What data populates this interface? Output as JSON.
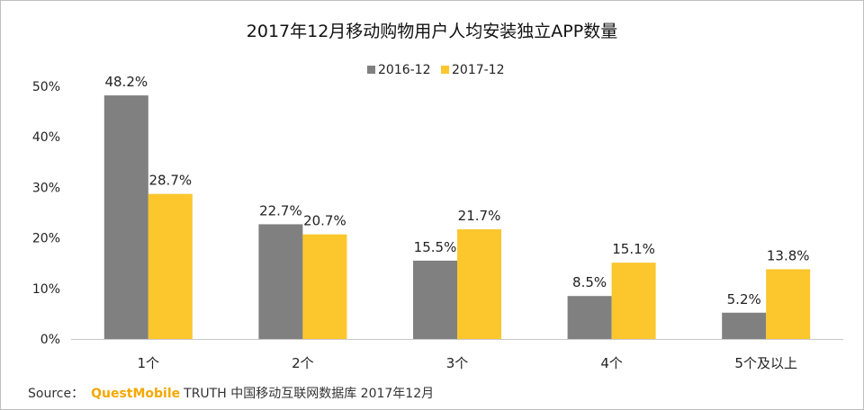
{
  "chart_data": {
    "type": "bar",
    "title": "2017年12月移动购物用户人均安装独立APP数量",
    "categories": [
      "1个",
      "2个",
      "3个",
      "4个",
      "5个及以上"
    ],
    "series": [
      {
        "name": "2016-12",
        "color": "#808080",
        "values": [
          48.2,
          22.7,
          15.5,
          8.5,
          5.2
        ]
      },
      {
        "name": "2017-12",
        "color": "#fcc62d",
        "values": [
          28.7,
          20.7,
          21.7,
          15.1,
          13.8
        ]
      }
    ],
    "data_labels": {
      "2016-12": [
        "48.2%",
        "22.7%",
        "15.5%",
        "8.5%",
        "5.2%"
      ],
      "2017-12": [
        "28.7%",
        "20.7%",
        "21.7%",
        "15.1%",
        "13.8%"
      ]
    },
    "ylim": [
      0,
      50
    ],
    "yticks": [
      "0%",
      "10%",
      "20%",
      "30%",
      "40%",
      "50%"
    ],
    "legend_position": "top-center",
    "grid": false
  },
  "source": {
    "prefix": "Source：",
    "brand": "QuestMobile",
    "rest": "TRUTH 中国移动互联网数据库 2017年12月"
  }
}
